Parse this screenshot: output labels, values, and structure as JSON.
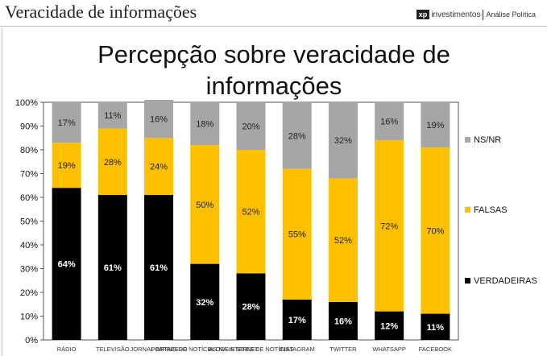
{
  "header": {
    "title": "Veracidade de informações",
    "logo_mark": "xp",
    "logo_brand": "investimentos",
    "logo_sub": "Análise Política"
  },
  "chart_data": {
    "type": "bar",
    "stacked": true,
    "title": "Percepção sobre veracidade de informações",
    "categories": [
      "RÁDIO",
      "TELEVISÃO",
      "JORNAL IMPRESSO",
      "PORTAIS DE NOTÍCIAS NA INTERNET",
      "BLOGS E SITES DE NOTÍCIAS",
      "INSTAGRAM",
      "TWITTER",
      "WHATSAPP",
      "FACEBOOK"
    ],
    "series": [
      {
        "name": "VERDADEIRAS",
        "values": [
          64,
          61,
          61,
          32,
          28,
          17,
          16,
          12,
          11
        ],
        "color": "#000000",
        "label_color": "#ffffff"
      },
      {
        "name": "FALSAS",
        "values": [
          19,
          28,
          24,
          50,
          52,
          55,
          52,
          72,
          70
        ],
        "color": "#ffc000",
        "label_color": "#222222"
      },
      {
        "name": "NS/NR",
        "values": [
          17,
          11,
          16,
          18,
          20,
          28,
          32,
          16,
          19
        ],
        "color": "#a6a6a6",
        "label_color": "#222222"
      }
    ],
    "value_suffix": "%",
    "yticks": [
      "0%",
      "10%",
      "20%",
      "30%",
      "40%",
      "50%",
      "60%",
      "70%",
      "80%",
      "90%",
      "100%"
    ],
    "ylim": [
      0,
      100
    ],
    "legend": "right",
    "grid": false
  }
}
